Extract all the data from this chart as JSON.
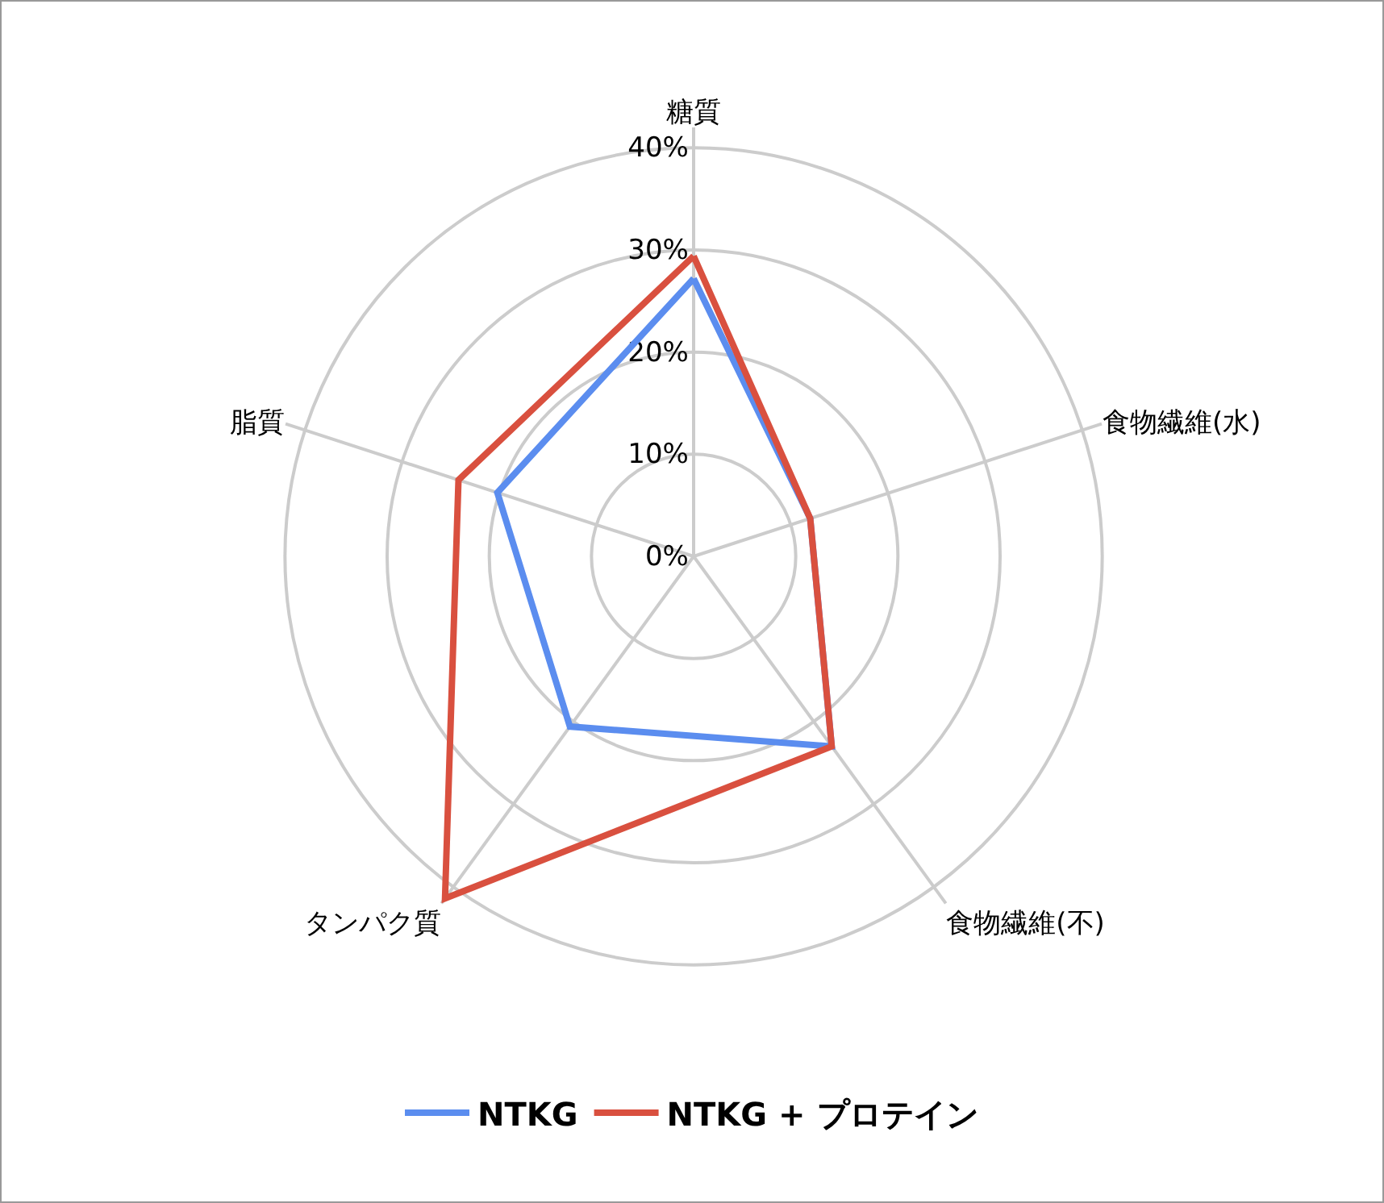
{
  "chart_data": {
    "type": "radar",
    "categories": [
      "糖質",
      "食物繊維(水)",
      "食物繊維(不)",
      "タンパク質",
      "脂質"
    ],
    "series": [
      {
        "name": "NTKG",
        "color": "#5b8def",
        "values": [
          27.2,
          12.0,
          23.0,
          20.6,
          20.2
        ]
      },
      {
        "name": "NTKG + プロテイン",
        "color": "#d9503f",
        "values": [
          29.4,
          12.0,
          23.0,
          41.4,
          24.2
        ]
      }
    ],
    "ylim": [
      0,
      42
    ],
    "yticks": [
      {
        "value": 0,
        "label": "0%"
      },
      {
        "value": 10,
        "label": "10%"
      },
      {
        "value": 20,
        "label": "20%"
      },
      {
        "value": 30,
        "label": "30%"
      },
      {
        "value": 40,
        "label": "40%"
      }
    ],
    "grid": true,
    "legend": "bottom",
    "marker": "none",
    "line_style": "solid"
  }
}
